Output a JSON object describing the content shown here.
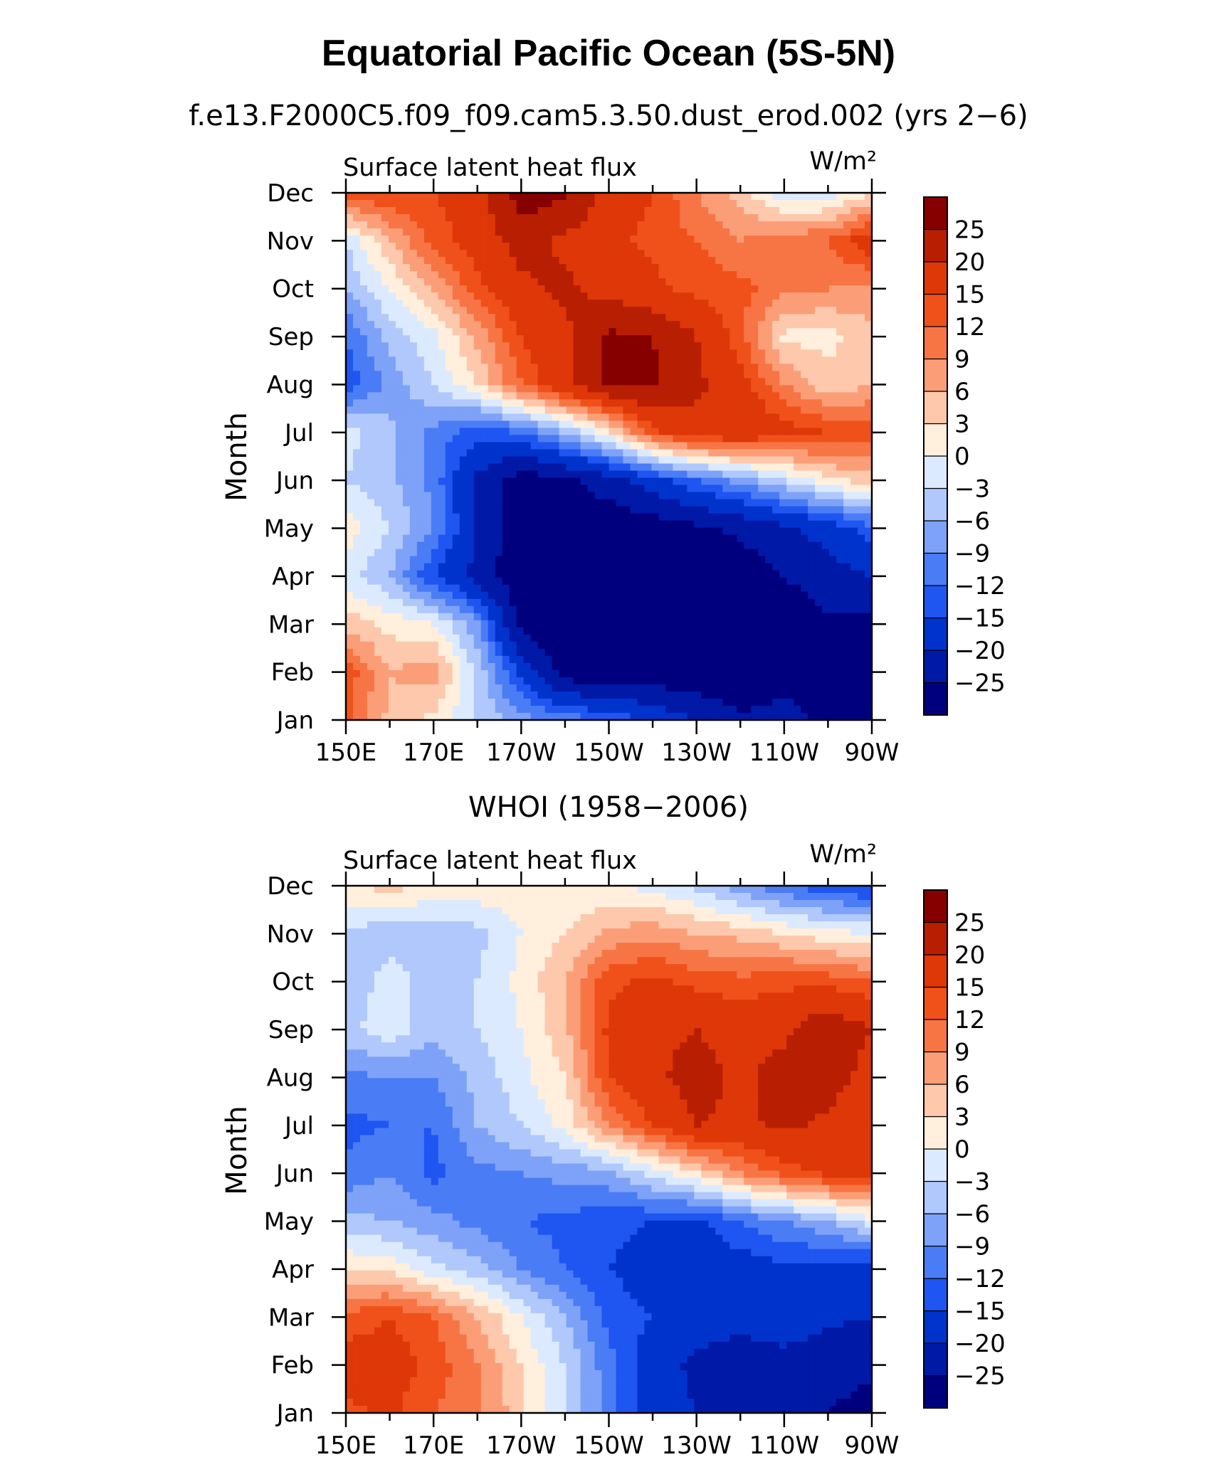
{
  "figure": {
    "title": "Equatorial Pacific Ocean (5S-5N)"
  },
  "palette": [
    "#00007f",
    "#0019a6",
    "#0033cc",
    "#1f55f0",
    "#4a7cf5",
    "#7da2f8",
    "#b0c8fb",
    "#dceaff",
    "#ffefdc",
    "#fdc8ac",
    "#fb9e78",
    "#f77544",
    "#f0511a",
    "#de3708",
    "#b81e02",
    "#860000"
  ],
  "chart_data": [
    {
      "type": "heatmap",
      "title": "f.e13.F2000C5.f09_f09.cam5.3.50.dust_erod.002 (yrs 2−6)",
      "left_label": "Surface latent heat flux",
      "units_label": "W/m²",
      "xlabel": "",
      "ylabel": "Month",
      "x_ticks": [
        "150E",
        "170E",
        "170W",
        "150W",
        "130W",
        "110W",
        "90W"
      ],
      "y_ticks": [
        "Jan",
        "Feb",
        "Mar",
        "Apr",
        "May",
        "Jun",
        "Jul",
        "Aug",
        "Sep",
        "Oct",
        "Nov",
        "Dec"
      ],
      "x_lon_east": [
        150,
        160,
        170,
        180,
        190,
        200,
        210,
        220,
        230,
        240,
        250,
        260,
        270
      ],
      "y_month": [
        1,
        2,
        3,
        4,
        5,
        6,
        7,
        8,
        9,
        10,
        11,
        12
      ],
      "colorbar_levels": [
        "25",
        "20",
        "15",
        "12",
        "9",
        "6",
        "3",
        "0",
        "−3",
        "−6",
        "−9",
        "−12",
        "−15",
        "−20",
        "−25"
      ],
      "level_values": [
        -25,
        -20,
        -15,
        -12,
        -9,
        -6,
        -3,
        0,
        3,
        6,
        9,
        12,
        15,
        20,
        25
      ],
      "z": [
        [
          13,
          5,
          2,
          -3,
          -8,
          -10,
          -12,
          -16,
          -20,
          -24,
          -24,
          -26,
          -28
        ],
        [
          14,
          6,
          8,
          -4,
          -16,
          -28,
          -29,
          -29,
          -29,
          -29,
          -26,
          -26,
          -27
        ],
        [
          5,
          2,
          0,
          -8,
          -27,
          -29,
          -29,
          -29,
          -29,
          -29,
          -29,
          -26,
          -26
        ],
        [
          -2,
          -6,
          -15,
          -22,
          -29,
          -29,
          -29,
          -29,
          -29,
          -28,
          -25,
          -22,
          -20
        ],
        [
          2,
          -3,
          -9,
          -20,
          -29,
          -29,
          -29,
          -28,
          -26,
          -24,
          -21,
          -18,
          -13
        ],
        [
          -3,
          -5,
          -10,
          -21,
          -28,
          -26,
          -22,
          -17,
          -12,
          -8,
          -3,
          2,
          5
        ],
        [
          -2,
          -5,
          -10,
          -14,
          -12,
          -6,
          2,
          14,
          18,
          19,
          17,
          15,
          14
        ],
        [
          -14,
          -8,
          -3,
          3,
          12,
          19,
          26,
          26,
          21,
          17,
          9,
          4,
          6
        ],
        [
          -12,
          -5,
          -1,
          7,
          15,
          19,
          26,
          25,
          20,
          13,
          2,
          2,
          5
        ],
        [
          -6,
          0,
          6,
          14,
          19,
          21,
          18,
          16,
          14,
          13,
          10,
          9,
          8
        ],
        [
          -3,
          6,
          13,
          17,
          22,
          19,
          16,
          14,
          12,
          9,
          11,
          12,
          18
        ],
        [
          14,
          15,
          15,
          18,
          28,
          26,
          18,
          15,
          9,
          5,
          -3,
          -2,
          3
        ]
      ]
    },
    {
      "type": "heatmap",
      "title": "WHOI (1958−2006)",
      "left_label": "Surface latent heat flux",
      "units_label": "W/m²",
      "xlabel": "",
      "ylabel": "Month",
      "x_ticks": [
        "150E",
        "170E",
        "170W",
        "150W",
        "130W",
        "110W",
        "90W"
      ],
      "y_ticks": [
        "Jan",
        "Feb",
        "Mar",
        "Apr",
        "May",
        "Jun",
        "Jul",
        "Aug",
        "Sep",
        "Oct",
        "Nov",
        "Dec"
      ],
      "x_lon_east": [
        150,
        160,
        170,
        180,
        190,
        200,
        210,
        220,
        230,
        240,
        250,
        260,
        270
      ],
      "y_month": [
        1,
        2,
        3,
        4,
        5,
        6,
        7,
        8,
        9,
        10,
        11,
        12
      ],
      "colorbar_levels": [
        "25",
        "20",
        "15",
        "12",
        "9",
        "6",
        "3",
        "0",
        "−3",
        "−6",
        "−9",
        "−12",
        "−15",
        "−20",
        "−25"
      ],
      "level_values": [
        -25,
        -20,
        -15,
        -12,
        -9,
        -6,
        -3,
        0,
        3,
        6,
        9,
        12,
        15,
        20,
        25
      ],
      "z": [
        [
          14,
          16,
          12,
          10,
          4,
          -3,
          -10,
          -18,
          -20,
          -22,
          -24,
          -25,
          -27
        ],
        [
          17,
          17,
          14,
          9,
          3,
          -3,
          -11,
          -18,
          -21,
          -23,
          -22,
          -23,
          -24
        ],
        [
          13,
          15,
          12,
          6,
          0,
          -6,
          -13,
          -15,
          -18,
          -18,
          -17,
          -19,
          -20
        ],
        [
          3,
          2,
          -2,
          -5,
          -9,
          -12,
          -15,
          -17,
          -18,
          -17,
          -16,
          -17,
          -18
        ],
        [
          -5,
          -6,
          -8,
          -10,
          -12,
          -13,
          -14,
          -15,
          -16,
          -12,
          -9,
          -6,
          -1
        ],
        [
          -11,
          -9,
          -13,
          -10,
          -9,
          -8,
          -7,
          -2,
          3,
          9,
          13,
          16,
          17
        ],
        [
          -13,
          -12,
          -12,
          -6,
          -3,
          1,
          9,
          15,
          20,
          19,
          21,
          19,
          17
        ],
        [
          -10,
          -9,
          -9,
          -5,
          -1,
          3,
          15,
          19,
          22,
          19,
          22,
          22,
          18
        ],
        [
          -4,
          -1,
          -5,
          -3,
          0,
          5,
          16,
          19,
          20,
          18,
          19,
          24,
          20
        ],
        [
          -6,
          -1,
          -5,
          -3,
          1,
          6,
          14,
          16,
          14,
          13,
          14,
          14,
          12
        ],
        [
          -4,
          -5,
          -6,
          -4,
          0,
          3,
          7,
          8,
          6,
          5,
          3,
          1,
          0
        ],
        [
          3,
          4,
          3,
          2,
          2,
          1,
          0,
          -1,
          -4,
          -8,
          -12,
          -14,
          -16
        ]
      ]
    }
  ]
}
